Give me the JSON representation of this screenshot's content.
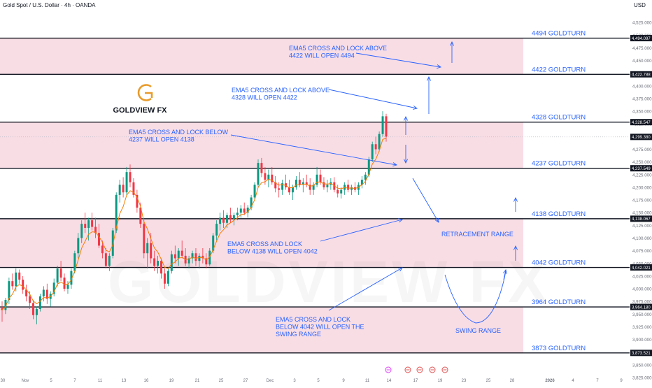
{
  "header": {
    "title": "Gold Spot / U.S. Dollar · 4h · OANDA",
    "currency": "USD"
  },
  "logo": {
    "text": "GOLDVIEW FX",
    "watermark": "GOLDVIEW FX"
  },
  "colors": {
    "zone": "#f8dde5",
    "line": "#131722",
    "arrow": "#2962ff",
    "text": "#2962ff",
    "bull": "#089981",
    "bear": "#f23645",
    "ema": "#f57c00",
    "logo_gold": "#e89b2a"
  },
  "chart_data": {
    "type": "candlestick",
    "title": "Gold Spot / U.S. Dollar · 4h · OANDA",
    "ylim": [
      3825,
      4550
    ],
    "y_ticks": [
      3825,
      3850,
      3875,
      3900,
      3925,
      3950,
      3975,
      4000,
      4025,
      4050,
      4075,
      4100,
      4125,
      4150,
      4175,
      4200,
      4225,
      4250,
      4275,
      4300,
      4325,
      4350,
      4375,
      4400,
      4425,
      4450,
      4475,
      4500,
      4525
    ],
    "x_ticks": [
      "30",
      "Nov",
      "5",
      "7",
      "11",
      "13",
      "16",
      "19",
      "21",
      "25",
      "27",
      "Dec",
      "3",
      "5",
      "9",
      "11",
      "14",
      "17",
      "19",
      "23",
      "25",
      "28",
      "2026",
      "4",
      "7",
      "9"
    ],
    "current_price": 4299.38,
    "levels": [
      {
        "price": 4494.097,
        "label": "4494 GOLDTURN",
        "price_label": "4,494.097"
      },
      {
        "price": 4422.788,
        "label": "4422 GOLDTURN",
        "price_label": "4,422.788"
      },
      {
        "price": 4328.547,
        "label": "4328 GOLDTURN",
        "price_label": "4,328.547"
      },
      {
        "price": 4237.549,
        "label": "4237 GOLDTURN",
        "price_label": "4,237.549"
      },
      {
        "price": 4138.067,
        "label": "4138 GOLDTURN",
        "price_label": "4,138.067"
      },
      {
        "price": 4042.021,
        "label": "4042 GOLDTURN",
        "price_label": "4,042.021"
      },
      {
        "price": 3964.18,
        "label": "3964 GOLDTURN",
        "price_label": "3,964.180"
      },
      {
        "price": 3873.521,
        "label": "3873 GOLDTURN",
        "price_label": "3,873.521"
      }
    ],
    "zones": [
      [
        4422.788,
        4494.097
      ],
      [
        4237.549,
        4328.547
      ],
      [
        4042.021,
        4138.067
      ],
      [
        3873.521,
        3964.18
      ]
    ],
    "annotations": [
      {
        "lines": [
          "EMA5 CROSS AND LOCK ABOVE",
          "4422 WILL OPEN 4494"
        ]
      },
      {
        "lines": [
          "EMA5 CROSS AND LOCK ABOVE",
          "4328 WILL OPEN 4422"
        ]
      },
      {
        "lines": [
          "EMA5 CROSS AND LOCK BELOW",
          "4237 WILL OPEN 4138"
        ]
      },
      {
        "lines": [
          "EMA5 CROSS AND LOCK",
          "BELOW 4138 WILL OPEN 4042"
        ]
      },
      {
        "lines": [
          "EMA5 CROSS AND LOCK",
          "BELOW 4042 WILL OPEN THE",
          "SWING RANGE"
        ]
      },
      {
        "lines": [
          "RETRACEMENT RANGE"
        ]
      },
      {
        "lines": [
          "SWING RANGE"
        ]
      }
    ],
    "candles": [
      [
        3962,
        3975,
        3935,
        3958
      ],
      [
        3958,
        3982,
        3950,
        3978
      ],
      [
        3978,
        4022,
        3970,
        4015
      ],
      [
        4015,
        4030,
        3998,
        4005
      ],
      [
        4005,
        4040,
        3995,
        4032
      ],
      [
        4032,
        4038,
        4010,
        4018
      ],
      [
        4018,
        4025,
        3990,
        3998
      ],
      [
        3998,
        4008,
        3975,
        3985
      ],
      [
        3985,
        3995,
        3960,
        3972
      ],
      [
        3972,
        3978,
        3940,
        3948
      ],
      [
        3948,
        3965,
        3930,
        3960
      ],
      [
        3960,
        3990,
        3955,
        3985
      ],
      [
        3985,
        4005,
        3975,
        3998
      ],
      [
        3998,
        4010,
        3970,
        3980
      ],
      [
        3980,
        3995,
        3965,
        3990
      ],
      [
        3990,
        4020,
        3985,
        4012
      ],
      [
        4012,
        4045,
        4005,
        4040
      ],
      [
        4040,
        4055,
        4015,
        4022
      ],
      [
        4022,
        4030,
        3995,
        4000
      ],
      [
        4000,
        4015,
        3990,
        4008
      ],
      [
        4008,
        4040,
        4000,
        4035
      ],
      [
        4035,
        4075,
        4030,
        4070
      ],
      [
        4070,
        4110,
        4060,
        4100
      ],
      [
        4100,
        4135,
        4090,
        4128
      ],
      [
        4128,
        4150,
        4110,
        4120
      ],
      [
        4120,
        4140,
        4095,
        4135
      ],
      [
        4135,
        4150,
        4115,
        4122
      ],
      [
        4122,
        4140,
        4100,
        4110
      ],
      [
        4110,
        4128,
        4080,
        4085
      ],
      [
        4085,
        4095,
        4060,
        4070
      ],
      [
        4070,
        4080,
        4040,
        4045
      ],
      [
        4045,
        4070,
        4035,
        4065
      ],
      [
        4065,
        4120,
        4060,
        4115
      ],
      [
        4115,
        4190,
        4110,
        4185
      ],
      [
        4185,
        4215,
        4170,
        4205
      ],
      [
        4205,
        4220,
        4180,
        4190
      ],
      [
        4190,
        4240,
        4185,
        4230
      ],
      [
        4230,
        4245,
        4200,
        4210
      ],
      [
        4210,
        4218,
        4180,
        4185
      ],
      [
        4185,
        4195,
        4150,
        4160
      ],
      [
        4160,
        4170,
        4120,
        4128
      ],
      [
        4128,
        4135,
        4060,
        4070
      ],
      [
        4070,
        4100,
        4040,
        4090
      ],
      [
        4090,
        4110,
        4050,
        4060
      ],
      [
        4060,
        4075,
        4035,
        4045
      ],
      [
        4045,
        4065,
        4030,
        4055
      ],
      [
        4055,
        4060,
        4020,
        4030
      ],
      [
        4030,
        4040,
        4000,
        4010
      ],
      [
        4010,
        4040,
        4005,
        4035
      ],
      [
        4035,
        4075,
        4030,
        4068
      ],
      [
        4068,
        4085,
        4050,
        4060
      ],
      [
        4060,
        4080,
        4045,
        4075
      ],
      [
        4075,
        4095,
        4060,
        4065
      ],
      [
        4065,
        4080,
        4045,
        4050
      ],
      [
        4050,
        4065,
        4040,
        4060
      ],
      [
        4060,
        4075,
        4050,
        4070
      ],
      [
        4070,
        4080,
        4045,
        4055
      ],
      [
        4055,
        4070,
        4040,
        4065
      ],
      [
        4065,
        4080,
        4050,
        4060
      ],
      [
        4060,
        4070,
        4040,
        4048
      ],
      [
        4048,
        4080,
        4045,
        4075
      ],
      [
        4075,
        4110,
        4070,
        4105
      ],
      [
        4105,
        4135,
        4095,
        4128
      ],
      [
        4128,
        4150,
        4115,
        4140
      ],
      [
        4140,
        4155,
        4120,
        4130
      ],
      [
        4130,
        4150,
        4120,
        4145
      ],
      [
        4145,
        4160,
        4130,
        4138
      ],
      [
        4138,
        4150,
        4125,
        4145
      ],
      [
        4145,
        4160,
        4135,
        4150
      ],
      [
        4150,
        4165,
        4140,
        4158
      ],
      [
        4158,
        4170,
        4145,
        4150
      ],
      [
        4150,
        4165,
        4140,
        4160
      ],
      [
        4160,
        4185,
        4155,
        4180
      ],
      [
        4180,
        4210,
        4175,
        4205
      ],
      [
        4205,
        4255,
        4200,
        4248
      ],
      [
        4248,
        4258,
        4220,
        4228
      ],
      [
        4228,
        4240,
        4205,
        4215
      ],
      [
        4215,
        4235,
        4200,
        4225
      ],
      [
        4225,
        4240,
        4205,
        4210
      ],
      [
        4210,
        4222,
        4190,
        4198
      ],
      [
        4198,
        4210,
        4180,
        4195
      ],
      [
        4195,
        4215,
        4185,
        4208
      ],
      [
        4208,
        4225,
        4195,
        4200
      ],
      [
        4200,
        4215,
        4185,
        4190
      ],
      [
        4190,
        4205,
        4175,
        4200
      ],
      [
        4200,
        4222,
        4195,
        4215
      ],
      [
        4215,
        4230,
        4200,
        4205
      ],
      [
        4205,
        4218,
        4190,
        4210
      ],
      [
        4210,
        4225,
        4200,
        4205
      ],
      [
        4205,
        4218,
        4185,
        4195
      ],
      [
        4195,
        4210,
        4185,
        4205
      ],
      [
        4205,
        4240,
        4200,
        4225
      ],
      [
        4225,
        4235,
        4205,
        4210
      ],
      [
        4210,
        4220,
        4195,
        4200
      ],
      [
        4200,
        4215,
        4190,
        4205
      ],
      [
        4205,
        4218,
        4195,
        4210
      ],
      [
        4210,
        4220,
        4190,
        4195
      ],
      [
        4195,
        4205,
        4180,
        4188
      ],
      [
        4188,
        4200,
        4178,
        4195
      ],
      [
        4195,
        4210,
        4185,
        4205
      ],
      [
        4205,
        4215,
        4190,
        4195
      ],
      [
        4195,
        4205,
        4185,
        4200
      ],
      [
        4200,
        4210,
        4190,
        4195
      ],
      [
        4195,
        4210,
        4185,
        4205
      ],
      [
        4205,
        4222,
        4198,
        4215
      ],
      [
        4215,
        4230,
        4205,
        4225
      ],
      [
        4225,
        4260,
        4220,
        4255
      ],
      [
        4255,
        4290,
        4250,
        4285
      ],
      [
        4285,
        4300,
        4265,
        4275
      ],
      [
        4275,
        4310,
        4270,
        4305
      ],
      [
        4305,
        4350,
        4300,
        4340
      ],
      [
        4340,
        4345,
        4290,
        4300
      ]
    ]
  }
}
